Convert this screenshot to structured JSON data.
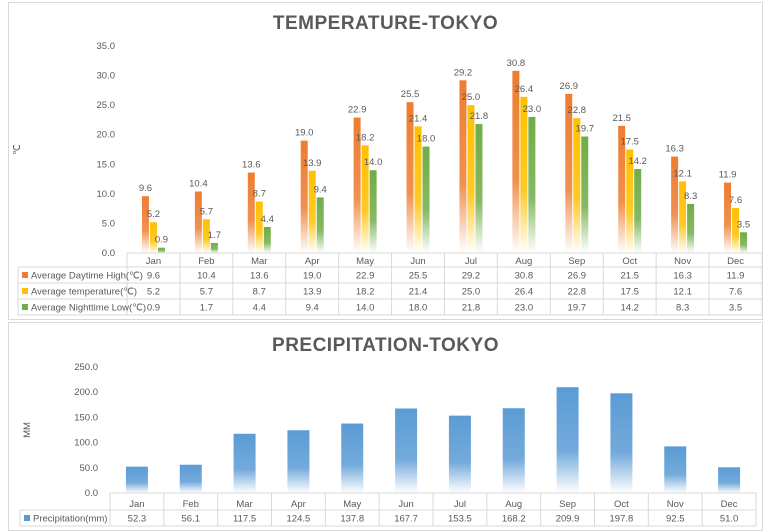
{
  "chart_data": [
    {
      "type": "bar",
      "title": "TEMPERATURE-TOKYO",
      "ylabel": "℃",
      "ylim": [
        0,
        35
      ],
      "yticks": [
        "0.0",
        "5.0",
        "10.0",
        "15.0",
        "20.0",
        "25.0",
        "30.0",
        "35.0"
      ],
      "categories": [
        "Jan",
        "Feb",
        "Mar",
        "Apr",
        "May",
        "Jun",
        "Jul",
        "Aug",
        "Sep",
        "Oct",
        "Nov",
        "Dec"
      ],
      "legend": "data-table",
      "grid": false,
      "series": [
        {
          "name": "Average Daytime High(℃)",
          "color": "#ED7D31",
          "values": [
            9.6,
            10.4,
            13.6,
            19.0,
            22.9,
            25.5,
            29.2,
            30.8,
            26.9,
            21.5,
            16.3,
            11.9
          ]
        },
        {
          "name": "Average temperature(℃)",
          "color": "#FFC000",
          "values": [
            5.2,
            5.7,
            8.7,
            13.9,
            18.2,
            21.4,
            25.0,
            26.4,
            22.8,
            17.5,
            12.1,
            7.6
          ]
        },
        {
          "name": "Average Nighttime Low(℃)",
          "color": "#70AD47",
          "values": [
            0.9,
            1.7,
            4.4,
            9.4,
            14.0,
            18.0,
            21.8,
            23.0,
            19.7,
            14.2,
            8.3,
            3.5
          ]
        }
      ]
    },
    {
      "type": "bar",
      "title": "PRECIPITATION-TOKYO",
      "ylabel": "MM",
      "ylim": [
        0,
        250
      ],
      "yticks": [
        "0.0",
        "50.0",
        "100.0",
        "150.0",
        "200.0",
        "250.0"
      ],
      "categories": [
        "Jan",
        "Feb",
        "Mar",
        "Apr",
        "May",
        "Jun",
        "Jul",
        "Aug",
        "Sep",
        "Oct",
        "Nov",
        "Dec"
      ],
      "legend": "data-table",
      "grid": false,
      "series": [
        {
          "name": "Precipitation(mm)",
          "color": "#5B9BD5",
          "values": [
            52.3,
            56.1,
            117.5,
            124.5,
            137.8,
            167.7,
            153.5,
            168.2,
            209.9,
            197.8,
            92.5,
            51.0
          ]
        }
      ]
    }
  ]
}
